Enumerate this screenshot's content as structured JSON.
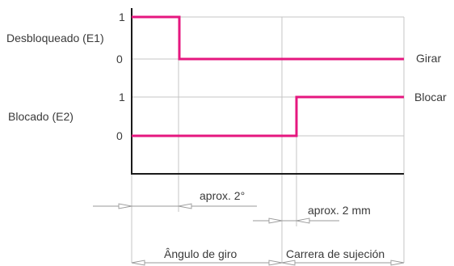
{
  "signals": {
    "e1": {
      "label": "Desbloqueado (E1)",
      "tick_high": "1",
      "tick_low": "0",
      "end_label": "Girar"
    },
    "e2": {
      "label": "Blocado (E2)",
      "tick_high": "1",
      "tick_low": "0",
      "end_label": "Blocar"
    }
  },
  "dimensions": {
    "angle": "aprox. 2°",
    "stroke": "aprox. 2 mm",
    "rotation_angle": "Ângulo de giro",
    "clamping_stroke": "Carrera de sujeción"
  },
  "colors": {
    "signal": "#e5177f",
    "grid": "#c4c4c4",
    "axis": "#1a1a1a",
    "text": "#3a3a3a"
  }
}
